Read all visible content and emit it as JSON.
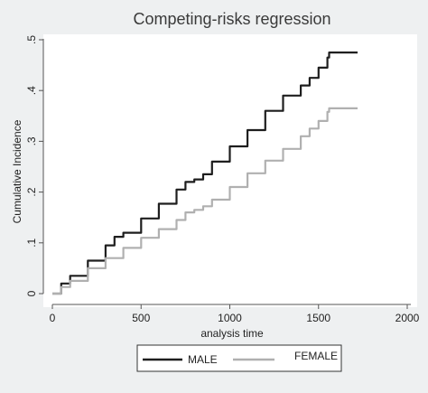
{
  "chart_data": {
    "type": "line",
    "title": "Competing-risks regression",
    "xlabel": "analysis time",
    "ylabel": "Cumulative Incidence",
    "xlim": [
      0,
      2000
    ],
    "ylim": [
      0,
      0.5
    ],
    "x_ticks": [
      0,
      500,
      1000,
      1500,
      2000
    ],
    "x_tick_labels": [
      "0",
      "500",
      "1000",
      "1500",
      "2000"
    ],
    "y_ticks": [
      0,
      0.1,
      0.2,
      0.3,
      0.4,
      0.5
    ],
    "y_tick_labels": [
      "0",
      ".1",
      ".2",
      ".3",
      ".4",
      ".5"
    ],
    "grid": false,
    "legend_position": "bottom",
    "series": [
      {
        "name": "MALE",
        "color": "#1e1e1e",
        "x": [
          0,
          50,
          100,
          200,
          300,
          350,
          400,
          500,
          600,
          700,
          750,
          800,
          850,
          900,
          1000,
          1100,
          1200,
          1300,
          1400,
          1450,
          1500,
          1550,
          1560,
          1720
        ],
        "y": [
          0,
          0.02,
          0.035,
          0.065,
          0.095,
          0.112,
          0.12,
          0.148,
          0.177,
          0.205,
          0.22,
          0.225,
          0.235,
          0.26,
          0.29,
          0.322,
          0.36,
          0.39,
          0.41,
          0.425,
          0.445,
          0.465,
          0.475,
          0.475
        ]
      },
      {
        "name": "FEMALE",
        "color": "#b0b0b0",
        "x": [
          0,
          50,
          100,
          200,
          300,
          400,
          500,
          600,
          700,
          750,
          800,
          850,
          900,
          1000,
          1100,
          1200,
          1300,
          1400,
          1450,
          1500,
          1550,
          1560,
          1720
        ],
        "y": [
          0,
          0.013,
          0.025,
          0.05,
          0.07,
          0.09,
          0.11,
          0.127,
          0.145,
          0.16,
          0.165,
          0.172,
          0.185,
          0.21,
          0.237,
          0.262,
          0.285,
          0.31,
          0.325,
          0.34,
          0.358,
          0.365,
          0.365
        ]
      }
    ]
  }
}
